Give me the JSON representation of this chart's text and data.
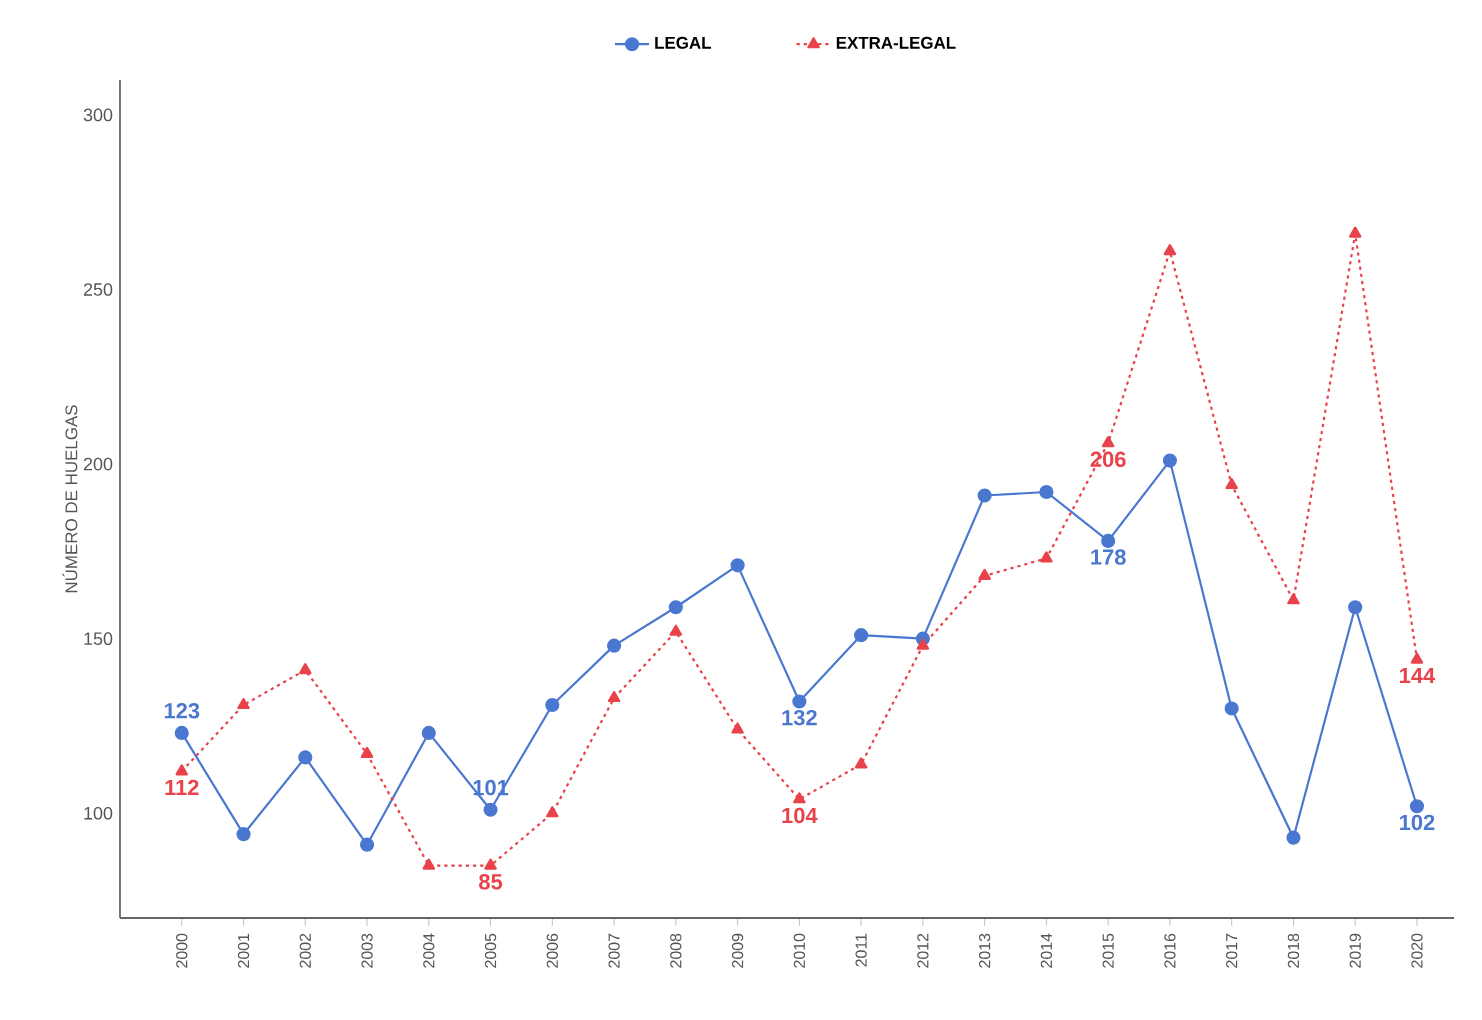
{
  "chart_data": {
    "type": "line",
    "ylabel": "NÚMERO DE HUELGAS",
    "categories": [
      "2000",
      "2001",
      "2002",
      "2003",
      "2004",
      "2005",
      "2006",
      "2007",
      "2008",
      "2009",
      "2010",
      "2011",
      "2012",
      "2013",
      "2014",
      "2015",
      "2016",
      "2017",
      "2018",
      "2019",
      "2020"
    ],
    "series": [
      {
        "name": "LEGAL",
        "color": "#4a78d0",
        "marker": "circle",
        "line_style": "solid",
        "values": [
          123,
          94,
          116,
          91,
          123,
          101,
          131,
          148,
          159,
          171,
          132,
          151,
          150,
          191,
          192,
          178,
          201,
          130,
          93,
          159,
          102
        ],
        "value_labels": [
          "123",
          null,
          null,
          null,
          null,
          "101",
          null,
          null,
          null,
          null,
          "132",
          null,
          null,
          null,
          null,
          "178",
          null,
          null,
          null,
          null,
          "102"
        ]
      },
      {
        "name": "EXTRA-LEGAL",
        "color": "#e8424a",
        "marker": "triangle",
        "line_style": "dotted",
        "values": [
          112,
          131,
          141,
          117,
          85,
          85,
          100,
          133,
          152,
          124,
          104,
          114,
          148,
          168,
          173,
          206,
          261,
          194,
          161,
          266,
          144
        ],
        "value_labels": [
          "112",
          null,
          null,
          null,
          null,
          "85",
          null,
          null,
          null,
          null,
          "104",
          null,
          null,
          null,
          null,
          "206",
          null,
          null,
          null,
          null,
          "144"
        ]
      }
    ],
    "ylim": [
      70,
      310
    ],
    "yticks": [
      100,
      150,
      200,
      250,
      300
    ],
    "grid": false,
    "legend": "top"
  }
}
